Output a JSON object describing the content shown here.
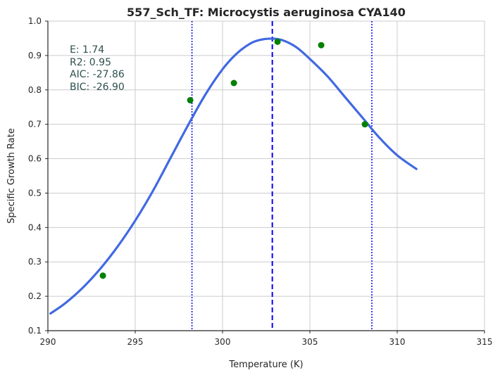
{
  "chart_data": {
    "type": "scatter",
    "title": "557_Sch_TF: Microcystis aeruginosa CYA140",
    "xlabel": "Temperature (K)",
    "ylabel": "Specific Growth Rate",
    "xlim": [
      290,
      315
    ],
    "ylim": [
      0.1,
      1.0
    ],
    "xticks": [
      290,
      295,
      300,
      305,
      310,
      315
    ],
    "yticks": [
      0.1,
      0.2,
      0.3,
      0.4,
      0.5,
      0.6,
      0.7,
      0.8,
      0.9,
      1.0
    ],
    "grid": true,
    "points": {
      "color": "#008000",
      "x": [
        293.15,
        298.15,
        300.65,
        303.15,
        305.65,
        308.15
      ],
      "y": [
        0.26,
        0.77,
        0.82,
        0.94,
        0.93,
        0.7
      ]
    },
    "fit_curve": {
      "color": "#4169e1",
      "x": [
        290.15,
        291.0,
        292.0,
        293.0,
        294.0,
        295.0,
        296.0,
        297.0,
        298.0,
        299.0,
        300.0,
        300.8,
        301.6,
        302.2,
        302.8,
        303.4,
        304.2,
        305.0,
        306.0,
        307.0,
        308.0,
        309.0,
        310.0,
        311.1
      ],
      "y": [
        0.15,
        0.18,
        0.225,
        0.28,
        0.345,
        0.42,
        0.505,
        0.6,
        0.695,
        0.785,
        0.86,
        0.905,
        0.935,
        0.946,
        0.949,
        0.945,
        0.925,
        0.89,
        0.84,
        0.78,
        0.72,
        0.66,
        0.61,
        0.57
      ]
    },
    "vlines": [
      {
        "x": 302.85,
        "style": "dashed",
        "color": "#0000ff"
      },
      {
        "x": 298.25,
        "style": "dotted",
        "color": "#0000ff"
      },
      {
        "x": 308.55,
        "style": "dotted",
        "color": "#0000ff"
      }
    ],
    "stats": [
      "E:  1.74",
      "R2:  0.95",
      "AIC: -27.86",
      "BIC: -26.90"
    ]
  }
}
